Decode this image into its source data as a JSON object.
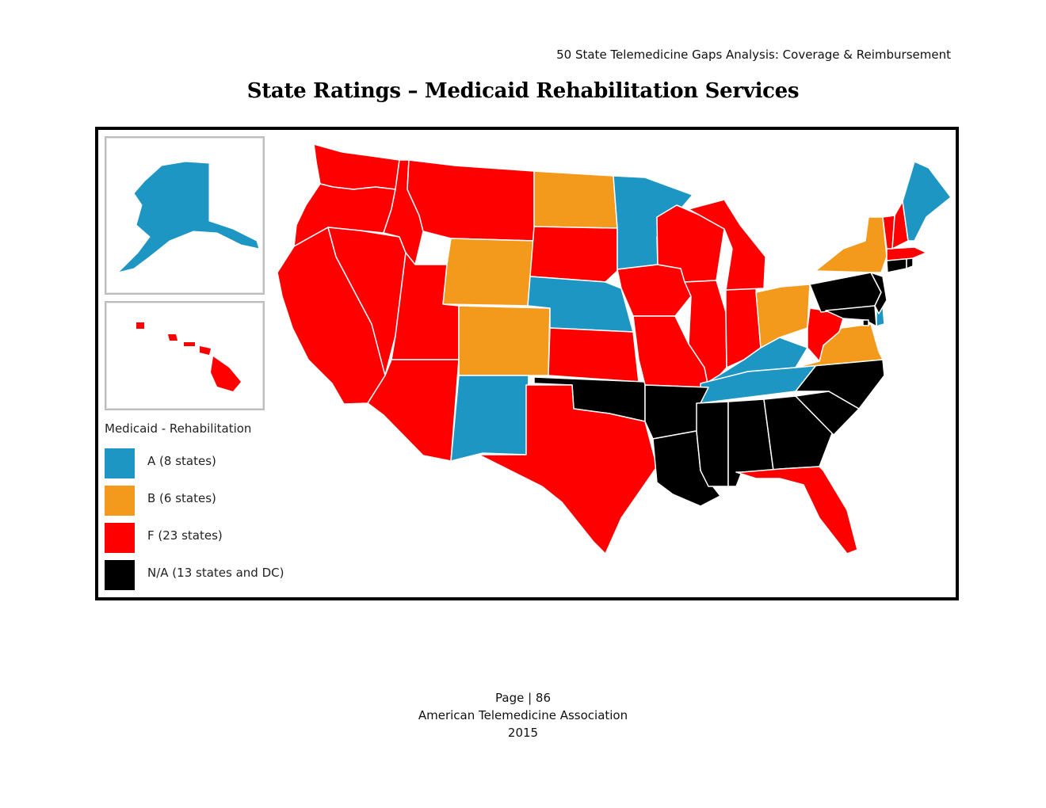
{
  "header": {
    "running_title": "50 State Telemedicine Gaps Analysis:  Coverage & Reimbursement"
  },
  "page_title": "State Ratings – Medicaid Rehabilitation Services",
  "colors": {
    "A": "#1e96c3",
    "B": "#f39a1c",
    "F": "#fe0000",
    "NA": "#000000",
    "border": "#ffffff"
  },
  "legend": {
    "title": "Medicaid - Rehabilitation",
    "items": [
      {
        "grade": "A",
        "label": "A (8 states)",
        "color": "#1e96c3"
      },
      {
        "grade": "B",
        "label": "B (6 states)",
        "color": "#f39a1c"
      },
      {
        "grade": "F",
        "label": "F (23 states)",
        "color": "#fe0000"
      },
      {
        "grade": "NA",
        "label": "N/A (13 states and DC)",
        "color": "#000000"
      }
    ]
  },
  "ratings": {
    "A": [
      "AK",
      "MN",
      "NE",
      "NM",
      "KY",
      "TN",
      "ME",
      "DE"
    ],
    "B": [
      "ND",
      "WY",
      "CO",
      "OH",
      "VA",
      "NY"
    ],
    "F": [
      "WA",
      "OR",
      "CA",
      "ID",
      "NV",
      "UT",
      "AZ",
      "MT",
      "SD",
      "KS",
      "TX",
      "IA",
      "MO",
      "WI",
      "IL",
      "MI",
      "IN",
      "WV",
      "FL",
      "VT",
      "NH",
      "MA",
      "HI"
    ],
    "NA": [
      "OK",
      "AR",
      "LA",
      "MS",
      "AL",
      "GA",
      "SC",
      "NC",
      "PA",
      "NJ",
      "MD",
      "CT",
      "RI",
      "DC"
    ]
  },
  "footer": {
    "page": "Page | 86",
    "organization": "American Telemedicine Association",
    "year": "2015"
  }
}
